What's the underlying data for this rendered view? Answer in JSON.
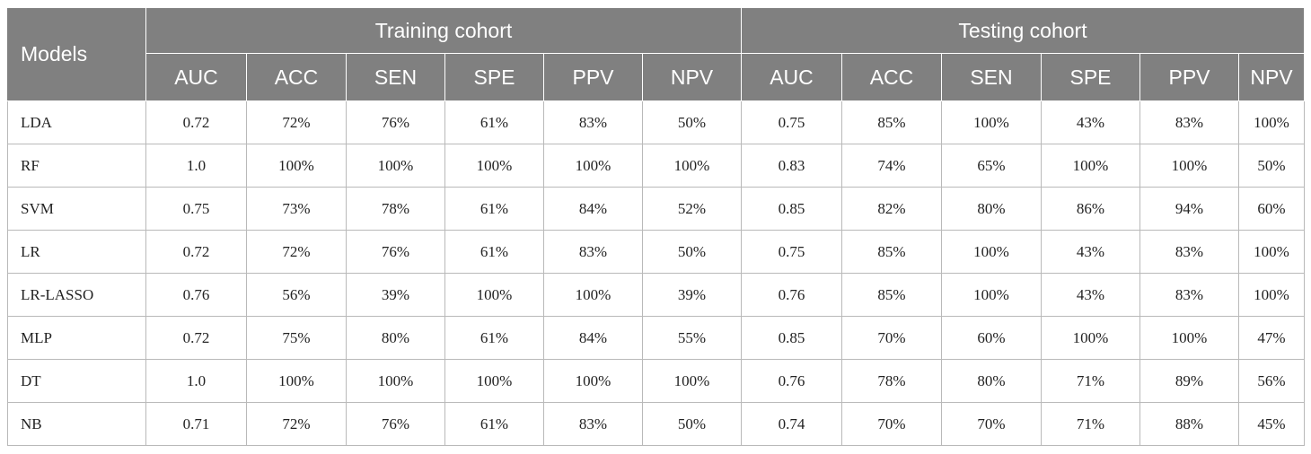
{
  "table": {
    "models_header": "Models",
    "groups": [
      {
        "label": "Training cohort"
      },
      {
        "label": "Testing cohort"
      }
    ],
    "metrics": [
      "AUC",
      "ACC",
      "SEN",
      "SPE",
      "PPV",
      "NPV",
      "AUC",
      "ACC",
      "SEN",
      "SPE",
      "PPV",
      "NPV"
    ],
    "rows": [
      {
        "model": "LDA",
        "values": [
          "0.72",
          "72%",
          "76%",
          "61%",
          "83%",
          "50%",
          "0.75",
          "85%",
          "100%",
          "43%",
          "83%",
          "100%"
        ]
      },
      {
        "model": "RF",
        "values": [
          "1.0",
          "100%",
          "100%",
          "100%",
          "100%",
          "100%",
          "0.83",
          "74%",
          "65%",
          "100%",
          "100%",
          "50%"
        ]
      },
      {
        "model": "SVM",
        "values": [
          "0.75",
          "73%",
          "78%",
          "61%",
          "84%",
          "52%",
          "0.85",
          "82%",
          "80%",
          "86%",
          "94%",
          "60%"
        ]
      },
      {
        "model": "LR",
        "values": [
          "0.72",
          "72%",
          "76%",
          "61%",
          "83%",
          "50%",
          "0.75",
          "85%",
          "100%",
          "43%",
          "83%",
          "100%"
        ]
      },
      {
        "model": "LR-LASSO",
        "values": [
          "0.76",
          "56%",
          "39%",
          "100%",
          "100%",
          "39%",
          "0.76",
          "85%",
          "100%",
          "43%",
          "83%",
          "100%"
        ]
      },
      {
        "model": "MLP",
        "values": [
          "0.72",
          "75%",
          "80%",
          "61%",
          "84%",
          "55%",
          "0.85",
          "70%",
          "60%",
          "100%",
          "100%",
          "47%"
        ]
      },
      {
        "model": "DT",
        "values": [
          "1.0",
          "100%",
          "100%",
          "100%",
          "100%",
          "100%",
          "0.76",
          "78%",
          "80%",
          "71%",
          "89%",
          "56%"
        ]
      },
      {
        "model": "NB",
        "values": [
          "0.71",
          "72%",
          "76%",
          "61%",
          "83%",
          "50%",
          "0.74",
          "70%",
          "70%",
          "71%",
          "88%",
          "45%"
        ]
      }
    ]
  }
}
